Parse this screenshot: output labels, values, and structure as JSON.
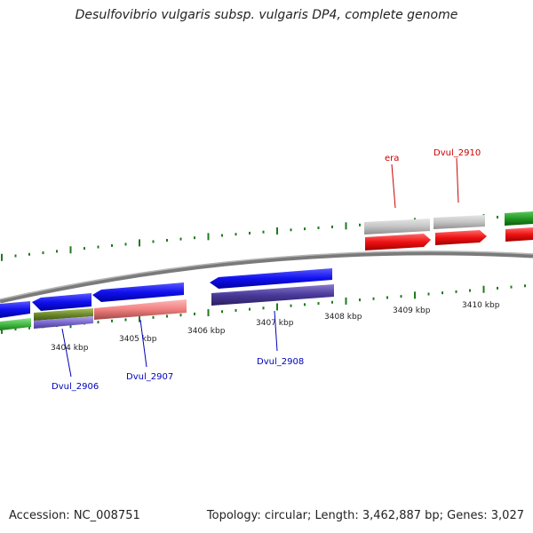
{
  "title": "Desulfovibrio vulgaris subsp. vulgaris DP4, complete genome",
  "footer": {
    "accession": "Accession: NC_008751",
    "topology": "Topology: circular; Length: 3,462,887 bp; Genes: 3,027"
  },
  "colors": {
    "backbone": "#8a8a8a",
    "tick": "#1f7a1f",
    "forward_cds": "#ee1111",
    "reverse_cds": "#1010ee",
    "forward_gene": "#bbbbbb",
    "label_red": "#cc0000",
    "label_blue": "#0000bb"
  },
  "scale": {
    "ticks": [
      {
        "label": "3404 kbp"
      },
      {
        "label": "3405 kbp"
      },
      {
        "label": "3406 kbp"
      },
      {
        "label": "3407 kbp"
      },
      {
        "label": "3408 kbp"
      },
      {
        "label": "3409 kbp"
      },
      {
        "label": "3410 kbp"
      }
    ]
  },
  "gene_labels": [
    {
      "text": "era",
      "color": "red"
    },
    {
      "text": "Dvul_2910",
      "color": "red"
    },
    {
      "text": "Dvul_2906",
      "color": "blue"
    },
    {
      "text": "Dvul_2907",
      "color": "blue"
    },
    {
      "text": "Dvul_2908",
      "color": "blue"
    }
  ]
}
